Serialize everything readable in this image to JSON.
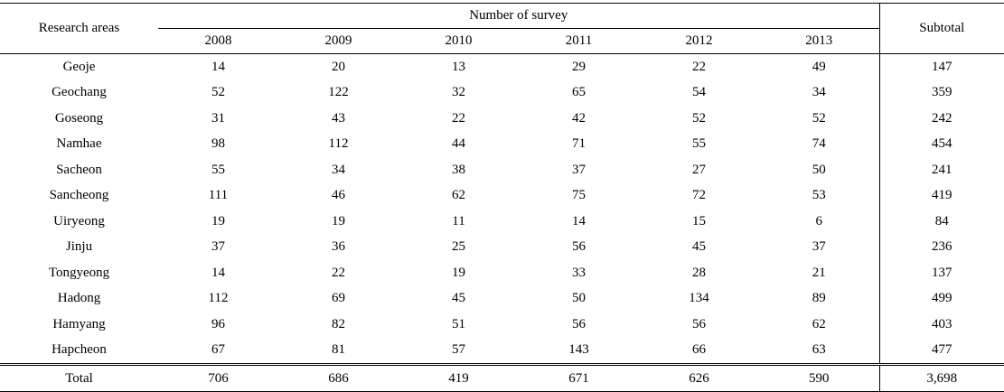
{
  "table": {
    "header": {
      "area": "Research areas",
      "group": "Number of survey",
      "years": [
        2008,
        2009,
        2010,
        2011,
        2012,
        2013
      ],
      "subtotal": "Subtotal"
    },
    "rows": [
      [
        "Geoje",
        14,
        20,
        13,
        29,
        22,
        49,
        147
      ],
      [
        "Geochang",
        52,
        122,
        32,
        65,
        54,
        34,
        359
      ],
      [
        "Goseong",
        31,
        43,
        22,
        42,
        52,
        52,
        242
      ],
      [
        "Namhae",
        98,
        112,
        44,
        71,
        55,
        74,
        454
      ],
      [
        "Sacheon",
        55,
        34,
        38,
        37,
        27,
        50,
        241
      ],
      [
        "Sancheong",
        111,
        46,
        62,
        75,
        72,
        53,
        419
      ],
      [
        "Uiryeong",
        19,
        19,
        11,
        14,
        15,
        6,
        84
      ],
      [
        "Jinju",
        37,
        36,
        25,
        56,
        45,
        37,
        236
      ],
      [
        "Tongyeong",
        14,
        22,
        19,
        33,
        28,
        21,
        137
      ],
      [
        "Hadong",
        112,
        69,
        45,
        50,
        134,
        89,
        499
      ],
      [
        "Hamyang",
        96,
        82,
        51,
        56,
        56,
        62,
        403
      ],
      [
        "Hapcheon",
        67,
        81,
        57,
        143,
        66,
        63,
        477
      ]
    ],
    "total": [
      "Total",
      706,
      686,
      419,
      671,
      626,
      590,
      "3,698"
    ]
  }
}
